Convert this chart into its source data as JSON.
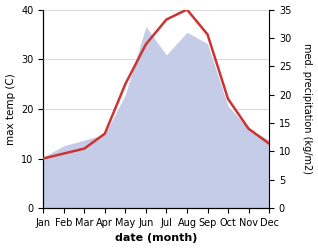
{
  "months": [
    "Jan",
    "Feb",
    "Mar",
    "Apr",
    "May",
    "Jun",
    "Jul",
    "Aug",
    "Sep",
    "Oct",
    "Nov",
    "Dec"
  ],
  "temp": [
    10,
    11,
    12,
    15,
    25,
    33,
    38,
    40,
    35,
    22,
    16,
    13
  ],
  "precip": [
    9,
    11,
    12,
    13,
    20,
    32,
    27,
    31,
    29,
    18,
    14,
    12
  ],
  "temp_color": "#cc3333",
  "precip_fill_color": "#c5cce8",
  "bg_color": "#ffffff",
  "xlabel": "date (month)",
  "ylabel_left": "max temp (C)",
  "ylabel_right": "med. precipitation (kg/m2)",
  "ylim_left": [
    0,
    40
  ],
  "ylim_right": [
    0,
    35
  ],
  "yticks_left": [
    0,
    10,
    20,
    30,
    40
  ],
  "yticks_right": [
    0,
    5,
    10,
    15,
    20,
    25,
    30,
    35
  ],
  "temp_linewidth": 1.8
}
